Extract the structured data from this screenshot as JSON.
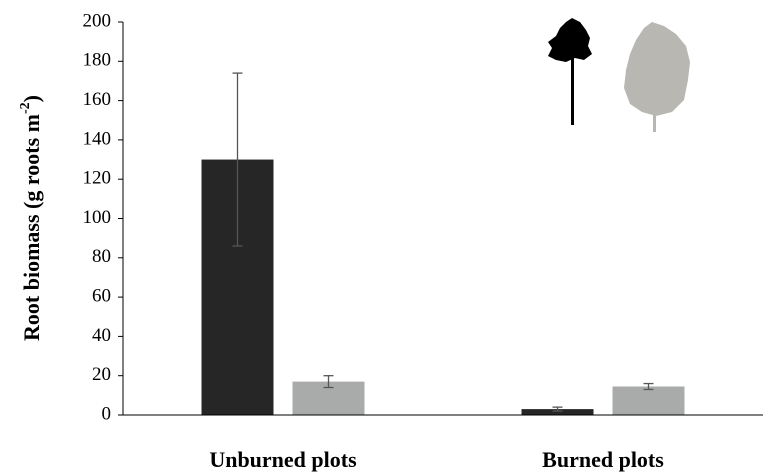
{
  "chart_data": {
    "type": "bar",
    "y_label": {
      "main": "Root biomass (g roots m",
      "sup": "-2",
      "end": ")"
    },
    "categories": [
      "Unburned plots",
      "Burned plots"
    ],
    "series": [
      {
        "color": "#262626",
        "values": [
          130,
          3
        ],
        "errors": [
          44,
          1
        ]
      },
      {
        "color": "#a8aba9",
        "values": [
          17,
          14.5
        ],
        "errors": [
          3,
          1.5
        ]
      }
    ],
    "ylim": [
      0,
      200
    ],
    "yticks": [
      0,
      20,
      40,
      60,
      80,
      100,
      120,
      140,
      160,
      180,
      200
    ]
  }
}
